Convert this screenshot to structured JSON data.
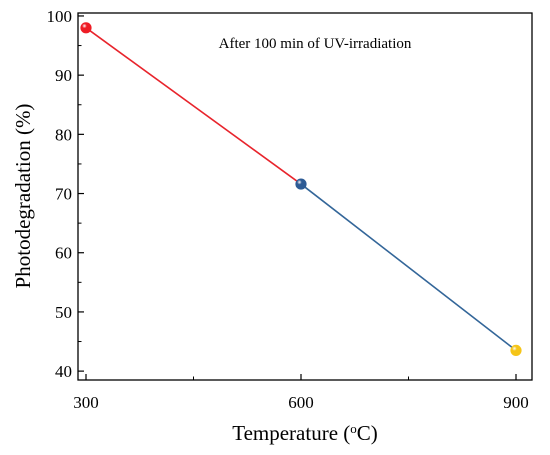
{
  "chart_data": {
    "type": "line",
    "annotation": "After 100 min of UV-irradiation",
    "xlabel_main": "Temperature (",
    "xlabel_sup": "o",
    "xlabel_tail": "C)",
    "ylabel": "Photodegradation (%)",
    "xlim": [
      300,
      900
    ],
    "ylim": [
      38.5,
      100.5
    ],
    "x_ticks": [
      300,
      600,
      900
    ],
    "x_minor_ticks": [
      450,
      750
    ],
    "y_ticks": [
      40,
      50,
      60,
      70,
      80,
      90,
      100
    ],
    "points": [
      {
        "x": 300,
        "y": 98.0,
        "color": "#ee1c25"
      },
      {
        "x": 600,
        "y": 71.6,
        "color": "#2d5b95"
      },
      {
        "x": 900,
        "y": 43.5,
        "color": "#f5c518"
      }
    ],
    "segments": [
      {
        "from": 0,
        "to": 1,
        "color": "#e8242c"
      },
      {
        "from": 1,
        "to": 2,
        "color": "#336699"
      }
    ],
    "grid": false
  }
}
